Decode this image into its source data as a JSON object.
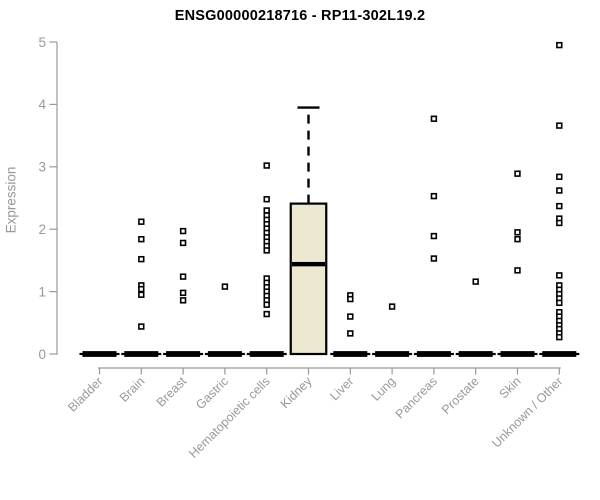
{
  "title": "ENSG00000218716 - RP11-302L19.2",
  "chart_data": {
    "type": "boxplot",
    "title": "ENSG00000218716 - RP11-302L19.2",
    "xlabel": "",
    "ylabel": "Expression",
    "ylim": [
      0,
      5
    ],
    "y_ticks": [
      0,
      1,
      2,
      3,
      4,
      5
    ],
    "grid": false,
    "legend": false,
    "categories": [
      "Bladder",
      "Brain",
      "Breast",
      "Gastric",
      "Hematopoietic cells",
      "Kidney",
      "Liver",
      "Lung",
      "Pancreas",
      "Prostate",
      "Skin",
      "Unknown / Other"
    ],
    "series": [
      {
        "category": "Bladder",
        "zero_bar": true,
        "median": 0,
        "points": []
      },
      {
        "category": "Brain",
        "zero_bar": true,
        "median": 0,
        "points": [
          2.12,
          1.84,
          1.52,
          1.1,
          1.04,
          0.95,
          0.44
        ]
      },
      {
        "category": "Breast",
        "zero_bar": true,
        "median": 0,
        "points": [
          1.97,
          1.78,
          1.24,
          0.98,
          0.86
        ]
      },
      {
        "category": "Gastric",
        "zero_bar": true,
        "median": 0,
        "points": [
          1.08
        ]
      },
      {
        "category": "Hematopoietic cells",
        "zero_bar": true,
        "median": 0,
        "points": [
          3.02,
          2.48,
          2.3,
          2.22,
          2.15,
          2.08,
          2.01,
          1.94,
          1.87,
          1.8,
          1.73,
          1.66,
          1.21,
          1.14,
          1.07,
          1.0,
          0.93,
          0.86,
          0.79,
          0.64
        ]
      },
      {
        "category": "Kidney",
        "zero_bar": false,
        "points": [],
        "box": {
          "whisker_low": 0,
          "q1": 0,
          "median": 1.44,
          "q3": 2.41,
          "whisker_high": 3.95
        }
      },
      {
        "category": "Liver",
        "zero_bar": true,
        "median": 0,
        "points": [
          0.94,
          0.88,
          0.6,
          0.33
        ]
      },
      {
        "category": "Lung",
        "zero_bar": true,
        "median": 0,
        "points": [
          0.76
        ]
      },
      {
        "category": "Pancreas",
        "zero_bar": true,
        "median": 0,
        "points": [
          3.77,
          2.53,
          1.89,
          1.53
        ]
      },
      {
        "category": "Prostate",
        "zero_bar": true,
        "median": 0,
        "points": [
          1.16
        ]
      },
      {
        "category": "Skin",
        "zero_bar": true,
        "median": 0,
        "points": [
          2.89,
          1.95,
          1.84,
          1.34
        ]
      },
      {
        "category": "Unknown / Other",
        "zero_bar": true,
        "median": 0,
        "points": [
          4.95,
          3.66,
          2.84,
          2.62,
          2.37,
          2.17,
          2.1,
          1.26,
          1.1,
          1.03,
          0.96,
          0.89,
          0.82,
          0.67,
          0.6,
          0.53,
          0.46,
          0.4,
          0.33,
          0.27
        ]
      }
    ],
    "colors": {
      "box_fill": "#EDE8D1",
      "box_stroke": "#000000",
      "median": "#000000",
      "zero_bar": "#000000",
      "point_stroke": "#000000",
      "point_fill": "#FFFFFF",
      "axis": "#999999",
      "tick_label": "#999999",
      "title": "#000000",
      "background": "#FFFFFF"
    }
  }
}
